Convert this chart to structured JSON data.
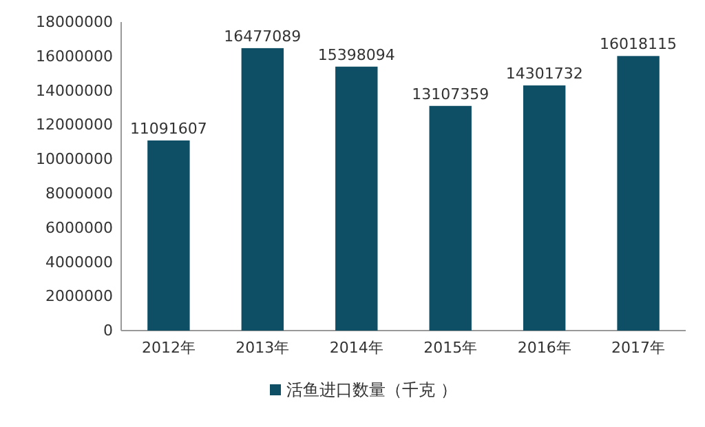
{
  "chart_data": {
    "type": "bar",
    "categories": [
      "2012年",
      "2013年",
      "2014年",
      "2015年",
      "2016年",
      "2017年"
    ],
    "series": [
      {
        "name": "活鱼进口数量（千克 ）",
        "color": "#0e4f65",
        "values": [
          11091607,
          16477089,
          15398094,
          13107359,
          14301732,
          16018115
        ]
      }
    ],
    "ylim": [
      0,
      18000000
    ],
    "yticks": [
      0,
      2000000,
      4000000,
      6000000,
      8000000,
      10000000,
      12000000,
      14000000,
      16000000,
      18000000
    ],
    "grid": false,
    "legend": "bottom",
    "data_labels": true
  }
}
